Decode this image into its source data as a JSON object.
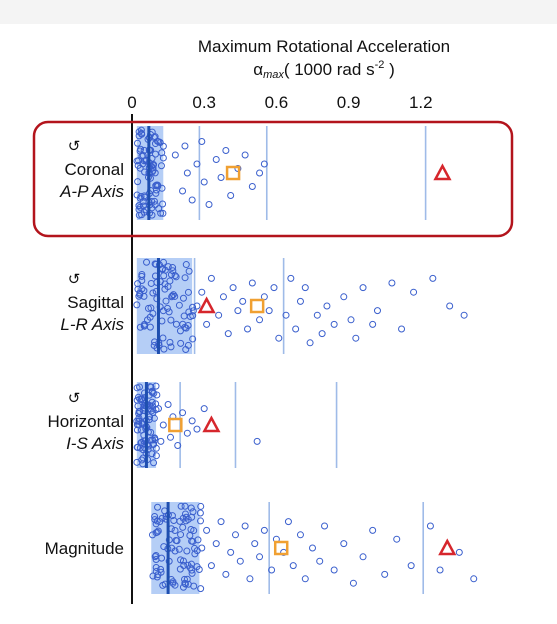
{
  "chart_data": {
    "type": "scatter",
    "title": "Maximum Rotational Acceleration",
    "xlabel": "αmax ( 1000 rad s-2 )",
    "xlabel_parts": {
      "symbol": "α",
      "subscript": "max",
      "unit_pre": "( 1000 rad s",
      "unit_sup": "-2",
      "unit_post": " )"
    },
    "x_ticks": [
      "0",
      "0.3",
      "0.6",
      "0.9",
      "1.2"
    ],
    "xlim": [
      0,
      1.5
    ],
    "grid": false,
    "highlight_row": "Coronal",
    "colors": {
      "points": "#3a5fcd",
      "box": "#a8c6f5",
      "median": "#1f4fb0",
      "vline": "#9fbbe8",
      "square": "#f0a032",
      "triangle": "#d6262c",
      "highlight": "#b3141c"
    },
    "series_markers": [
      "square",
      "triangle"
    ],
    "rows": [
      {
        "name": "Coronal",
        "rotation_symbol": "↺",
        "axis": "A-P Axis",
        "box_q1": 0.02,
        "box_q3": 0.13,
        "median": 0.07,
        "vlines": [
          0.28,
          0.56,
          1.22
        ],
        "square": 0.42,
        "triangle": 1.29,
        "outliers": [
          {
            "x": 0.18,
            "y": 0.3
          },
          {
            "x": 0.21,
            "y": 0.7
          },
          {
            "x": 0.22,
            "y": 0.2
          },
          {
            "x": 0.23,
            "y": 0.5
          },
          {
            "x": 0.25,
            "y": 0.8
          },
          {
            "x": 0.27,
            "y": 0.4
          },
          {
            "x": 0.29,
            "y": 0.15
          },
          {
            "x": 0.3,
            "y": 0.6
          },
          {
            "x": 0.32,
            "y": 0.85
          },
          {
            "x": 0.35,
            "y": 0.35
          },
          {
            "x": 0.37,
            "y": 0.55
          },
          {
            "x": 0.39,
            "y": 0.25
          },
          {
            "x": 0.41,
            "y": 0.75
          },
          {
            "x": 0.44,
            "y": 0.45
          },
          {
            "x": 0.47,
            "y": 0.3
          },
          {
            "x": 0.5,
            "y": 0.65
          },
          {
            "x": 0.53,
            "y": 0.5
          },
          {
            "x": 0.55,
            "y": 0.4
          }
        ]
      },
      {
        "name": "Sagittal",
        "rotation_symbol": "↺",
        "axis": "L-R Axis",
        "box_q1": 0.02,
        "box_q3": 0.25,
        "median": 0.11,
        "vlines": [
          0.26,
          0.63
        ],
        "square": 0.52,
        "triangle": 0.31,
        "outliers": [
          {
            "x": 0.27,
            "y": 0.5
          },
          {
            "x": 0.29,
            "y": 0.35
          },
          {
            "x": 0.31,
            "y": 0.7
          },
          {
            "x": 0.33,
            "y": 0.2
          },
          {
            "x": 0.36,
            "y": 0.6
          },
          {
            "x": 0.38,
            "y": 0.4
          },
          {
            "x": 0.4,
            "y": 0.8
          },
          {
            "x": 0.42,
            "y": 0.3
          },
          {
            "x": 0.44,
            "y": 0.55
          },
          {
            "x": 0.46,
            "y": 0.45
          },
          {
            "x": 0.48,
            "y": 0.75
          },
          {
            "x": 0.5,
            "y": 0.25
          },
          {
            "x": 0.53,
            "y": 0.65
          },
          {
            "x": 0.55,
            "y": 0.4
          },
          {
            "x": 0.57,
            "y": 0.55
          },
          {
            "x": 0.59,
            "y": 0.3
          },
          {
            "x": 0.61,
            "y": 0.85
          },
          {
            "x": 0.64,
            "y": 0.6
          },
          {
            "x": 0.66,
            "y": 0.2
          },
          {
            "x": 0.68,
            "y": 0.75
          },
          {
            "x": 0.7,
            "y": 0.45
          },
          {
            "x": 0.72,
            "y": 0.3
          },
          {
            "x": 0.74,
            "y": 0.9
          },
          {
            "x": 0.77,
            "y": 0.6
          },
          {
            "x": 0.79,
            "y": 0.8
          },
          {
            "x": 0.81,
            "y": 0.5
          },
          {
            "x": 0.84,
            "y": 0.7
          },
          {
            "x": 0.88,
            "y": 0.4
          },
          {
            "x": 0.91,
            "y": 0.65
          },
          {
            "x": 0.93,
            "y": 0.85
          },
          {
            "x": 0.96,
            "y": 0.3
          },
          {
            "x": 1.0,
            "y": 0.7
          },
          {
            "x": 1.02,
            "y": 0.55
          },
          {
            "x": 1.08,
            "y": 0.25
          },
          {
            "x": 1.12,
            "y": 0.75
          },
          {
            "x": 1.17,
            "y": 0.35
          },
          {
            "x": 1.25,
            "y": 0.2
          },
          {
            "x": 1.32,
            "y": 0.5
          },
          {
            "x": 1.38,
            "y": 0.6
          }
        ]
      },
      {
        "name": "Horizontal",
        "rotation_symbol": "↺",
        "axis": "I-S Axis",
        "box_q1": 0.02,
        "box_q3": 0.1,
        "median": 0.06,
        "vlines": [
          0.2,
          0.43,
          0.85
        ],
        "square": 0.18,
        "triangle": 0.33,
        "outliers": [
          {
            "x": 0.11,
            "y": 0.3
          },
          {
            "x": 0.12,
            "y": 0.7
          },
          {
            "x": 0.13,
            "y": 0.5
          },
          {
            "x": 0.15,
            "y": 0.25
          },
          {
            "x": 0.16,
            "y": 0.65
          },
          {
            "x": 0.17,
            "y": 0.4
          },
          {
            "x": 0.19,
            "y": 0.75
          },
          {
            "x": 0.21,
            "y": 0.35
          },
          {
            "x": 0.23,
            "y": 0.6
          },
          {
            "x": 0.25,
            "y": 0.45
          },
          {
            "x": 0.27,
            "y": 0.55
          },
          {
            "x": 0.3,
            "y": 0.3
          },
          {
            "x": 0.52,
            "y": 0.7
          }
        ]
      },
      {
        "name": "Magnitude",
        "rotation_symbol": "",
        "axis": "",
        "box_q1": 0.08,
        "box_q3": 0.28,
        "median": 0.15,
        "vlines": [
          0.57,
          1.21
        ],
        "square": 0.62,
        "triangle": 1.31,
        "outliers": [
          {
            "x": 0.29,
            "y": 0.5
          },
          {
            "x": 0.31,
            "y": 0.3
          },
          {
            "x": 0.33,
            "y": 0.7
          },
          {
            "x": 0.35,
            "y": 0.45
          },
          {
            "x": 0.37,
            "y": 0.2
          },
          {
            "x": 0.39,
            "y": 0.8
          },
          {
            "x": 0.41,
            "y": 0.55
          },
          {
            "x": 0.43,
            "y": 0.35
          },
          {
            "x": 0.45,
            "y": 0.65
          },
          {
            "x": 0.47,
            "y": 0.25
          },
          {
            "x": 0.49,
            "y": 0.85
          },
          {
            "x": 0.51,
            "y": 0.45
          },
          {
            "x": 0.53,
            "y": 0.6
          },
          {
            "x": 0.55,
            "y": 0.3
          },
          {
            "x": 0.58,
            "y": 0.75
          },
          {
            "x": 0.6,
            "y": 0.4
          },
          {
            "x": 0.63,
            "y": 0.55
          },
          {
            "x": 0.65,
            "y": 0.2
          },
          {
            "x": 0.67,
            "y": 0.7
          },
          {
            "x": 0.7,
            "y": 0.35
          },
          {
            "x": 0.72,
            "y": 0.85
          },
          {
            "x": 0.75,
            "y": 0.5
          },
          {
            "x": 0.78,
            "y": 0.65
          },
          {
            "x": 0.8,
            "y": 0.25
          },
          {
            "x": 0.84,
            "y": 0.75
          },
          {
            "x": 0.88,
            "y": 0.45
          },
          {
            "x": 0.92,
            "y": 0.9
          },
          {
            "x": 0.96,
            "y": 0.6
          },
          {
            "x": 1.0,
            "y": 0.3
          },
          {
            "x": 1.05,
            "y": 0.8
          },
          {
            "x": 1.1,
            "y": 0.4
          },
          {
            "x": 1.16,
            "y": 0.7
          },
          {
            "x": 1.24,
            "y": 0.25
          },
          {
            "x": 1.28,
            "y": 0.75
          },
          {
            "x": 1.36,
            "y": 0.55
          },
          {
            "x": 1.42,
            "y": 0.85
          }
        ]
      }
    ]
  }
}
